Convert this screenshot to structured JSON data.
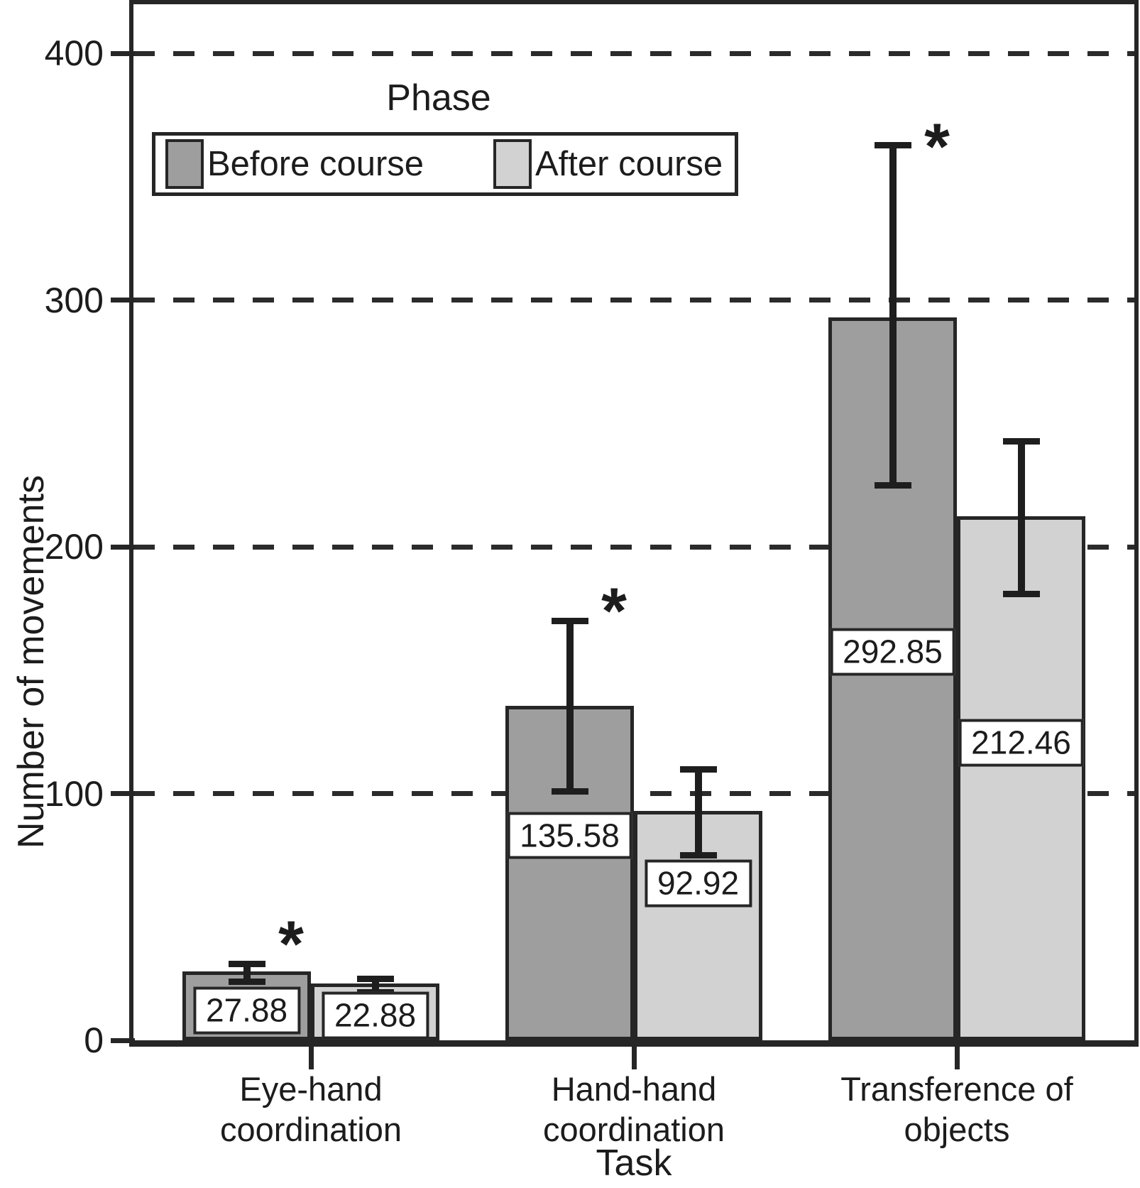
{
  "chart_data": {
    "type": "bar",
    "title": "",
    "ylabel": "Number of movements",
    "xlabel": "Task",
    "legend": {
      "title": "Phase",
      "entries": [
        "Before course",
        "After course"
      ],
      "position": "top-left-inside"
    },
    "categories": [
      "Eye-hand\ncoordination",
      "Hand-hand\ncoordination",
      "Transference of\nobjects"
    ],
    "series": [
      {
        "name": "Before course",
        "color": "#9e9e9e",
        "values": [
          27.88,
          135.58,
          292.85
        ],
        "error_bars": [
          [
            24,
            31
          ],
          [
            101,
            170
          ],
          [
            225,
            363
          ]
        ],
        "value_label_y": [
          12,
          83,
          157.5
        ]
      },
      {
        "name": "After course",
        "color": "#d2d2d2",
        "values": [
          22.88,
          92.92,
          212.46
        ],
        "error_bars": [
          [
            19.5,
            25
          ],
          [
            75,
            110
          ],
          [
            181,
            243
          ]
        ],
        "value_label_y": [
          10,
          63.5,
          120.5
        ]
      }
    ],
    "significance_markers": [
      {
        "group": 0,
        "symbol": "*",
        "y": 45
      },
      {
        "group": 1,
        "symbol": "*",
        "y": 180
      },
      {
        "group": 2,
        "symbol": "*",
        "y": 368
      }
    ],
    "y_axis": {
      "min": 0,
      "max": 420,
      "ticks": [
        0,
        100,
        200,
        300,
        400
      ],
      "gridlines": [
        100,
        200,
        300,
        400
      ],
      "gridline_style": "dashed"
    },
    "grid": "horizontal-dashed",
    "outline_color": "#262626",
    "background_color": "#ffffff"
  }
}
